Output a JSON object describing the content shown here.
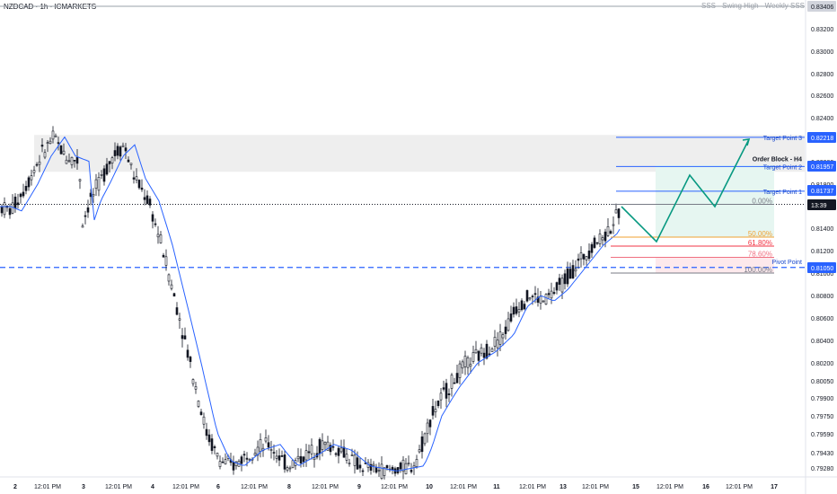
{
  "header": {
    "symbol": "NZDCAD · 1h · ICMARKETS",
    "sss_label": "SSS - Swing High - Weekly SSS"
  },
  "chart_data": {
    "type": "candlestick",
    "ylim": [
      0.792,
      0.835
    ],
    "y_ticks": [
      "0.83200",
      "0.83000",
      "0.82800",
      "0.82600",
      "0.82400",
      "0.82200",
      "0.82000",
      "0.81800",
      "0.81600",
      "0.81400",
      "0.81200",
      "0.81000",
      "0.80800",
      "0.80600",
      "0.80400",
      "0.80200",
      "0.80050",
      "0.79900",
      "0.79750",
      "0.79590",
      "0.79430",
      "0.79280"
    ],
    "x_ticks": [
      "2",
      "12:01 PM",
      "3",
      "12:01 PM",
      "4",
      "12:01 PM",
      "6",
      "12:01 PM",
      "8",
      "12:01 PM",
      "9",
      "12:01 PM",
      "10",
      "12:01 PM",
      "11",
      "12:01 PM",
      "13",
      "12:01 PM",
      "15",
      "12:01 PM",
      "16",
      "12:01 PM",
      "17"
    ],
    "price_badges": [
      {
        "value": "0.83406",
        "color": "#d1d4dc",
        "text_color": "#131722"
      },
      {
        "value": "0.82218",
        "color": "#2962ff",
        "text_color": "#ffffff"
      },
      {
        "value": "0.81957",
        "color": "#2962ff",
        "text_color": "#ffffff"
      },
      {
        "value": "0.81737",
        "color": "#2962ff",
        "text_color": "#ffffff"
      },
      {
        "value": "13:39",
        "color": "#131722",
        "text_color": "#ffffff"
      },
      {
        "value": "0.81050",
        "color": "#2962ff",
        "text_color": "#ffffff"
      }
    ],
    "levels": {
      "target_3": {
        "label": "Target Point 3",
        "price": 0.82218
      },
      "target_2": {
        "label": "Target Point 2",
        "price": 0.81957
      },
      "target_1": {
        "label": "Target Point 1",
        "price": 0.81737
      },
      "pivot": {
        "label": "Pivot Point",
        "price": 0.8105
      },
      "order_block": {
        "label": "Order Block - H4"
      },
      "current_price": 0.8162
    },
    "fib_levels": [
      {
        "label": "0.00%",
        "color": "#787b86",
        "price": 0.8162
      },
      {
        "label": "50.00%",
        "color": "#f0a030",
        "price": 0.8132
      },
      {
        "label": "61.80%",
        "color": "#f23645",
        "price": 0.8124
      },
      {
        "label": "78.60%",
        "color": "#f07080",
        "price": 0.8114
      },
      {
        "label": "100.00%",
        "color": "#787b86",
        "price": 0.81
      }
    ],
    "colors": {
      "candle": "#131722",
      "ma_line": "#2962ff",
      "projection": "#089981",
      "target_line": "#2962ff",
      "zone_fill": "#eeeeee"
    },
    "grid": false,
    "legend": "none"
  }
}
